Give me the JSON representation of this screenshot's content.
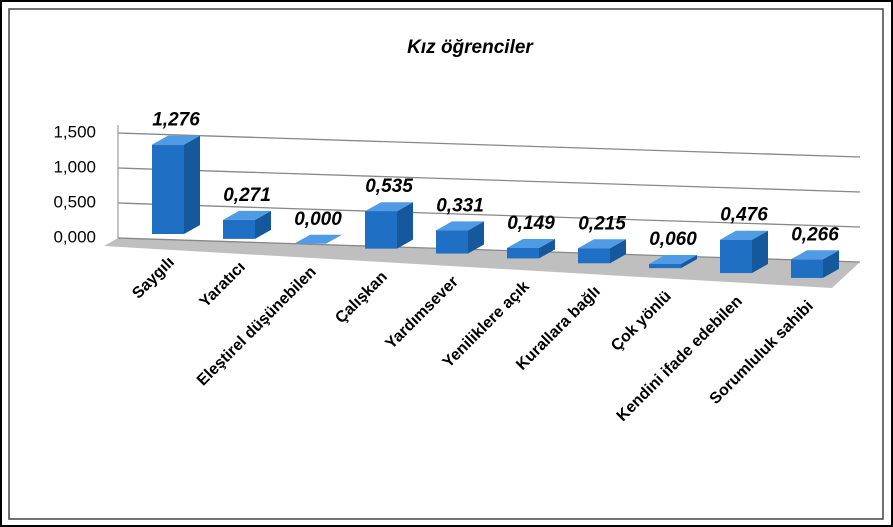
{
  "chart_data": {
    "type": "bar3d",
    "title": "Kız öğrenciler",
    "categories": [
      "Saygılı",
      "Yaratıcı",
      "Eleştirel düşünebilen",
      "Çalışkan",
      "Yardımsever",
      "Yeniliklere açık",
      "Kurallara bağlı",
      "Çok yönlü",
      "Kendini ifade edebilen",
      "Sorumluluk sahibi"
    ],
    "values": [
      1.276,
      0.271,
      0,
      0.535,
      0.331,
      0.149,
      0.215,
      0.06,
      0.476,
      0.266
    ],
    "value_labels": [
      "1,276",
      "0,271",
      "0,000",
      "0,535",
      "0,331",
      "0,149",
      "0,215",
      "0,060",
      "0,476",
      "0,266"
    ],
    "color": "#1f6fc4",
    "ylim": [
      0,
      1.5
    ],
    "yticks": [
      {
        "value": 0,
        "label": "0,000"
      },
      {
        "value": 0.5,
        "label": "0,500"
      },
      {
        "value": 1,
        "label": "1,000"
      },
      {
        "value": 1.5,
        "label": "1,500"
      }
    ],
    "grid": true
  }
}
